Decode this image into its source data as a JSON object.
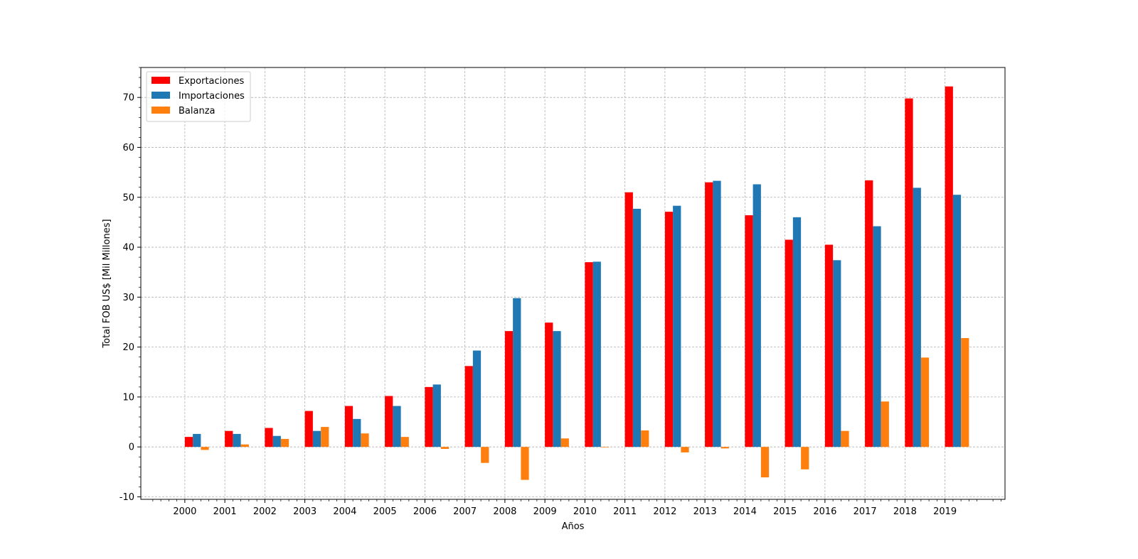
{
  "chart_data": {
    "type": "bar",
    "title": "",
    "xlabel": "Años",
    "ylabel": "Total FOB US$ [Mil Millones]",
    "categories": [
      "2000",
      "2001",
      "2002",
      "2003",
      "2004",
      "2005",
      "2006",
      "2007",
      "2008",
      "2009",
      "2010",
      "2011",
      "2012",
      "2013",
      "2014",
      "2015",
      "2016",
      "2017",
      "2018",
      "2019"
    ],
    "yticks": [
      -10,
      0,
      10,
      20,
      30,
      40,
      50,
      60,
      70
    ],
    "ylim": [
      -10.5,
      76
    ],
    "grid": true,
    "legend_position": "top-left",
    "series": [
      {
        "name": "Exportaciones",
        "color": "#ff0000",
        "values": [
          2.0,
          3.2,
          3.8,
          7.2,
          8.2,
          10.2,
          12.0,
          16.2,
          23.2,
          24.9,
          37.0,
          51.0,
          47.1,
          53.0,
          46.4,
          41.5,
          40.5,
          53.4,
          69.8,
          72.2
        ]
      },
      {
        "name": "Importaciones",
        "color": "#1f77b4",
        "values": [
          2.6,
          2.6,
          2.2,
          3.2,
          5.6,
          8.2,
          12.5,
          19.3,
          29.8,
          23.2,
          37.1,
          47.7,
          48.3,
          53.3,
          52.6,
          46.0,
          37.4,
          44.2,
          51.9,
          50.5
        ]
      },
      {
        "name": "Balanza",
        "color": "#ff7f0e",
        "values": [
          -0.6,
          0.5,
          1.6,
          4.0,
          2.7,
          2.0,
          -0.4,
          -3.2,
          -6.6,
          1.7,
          -0.1,
          3.3,
          -1.1,
          -0.3,
          -6.1,
          -4.5,
          3.2,
          9.1,
          17.9,
          21.8
        ]
      }
    ]
  }
}
